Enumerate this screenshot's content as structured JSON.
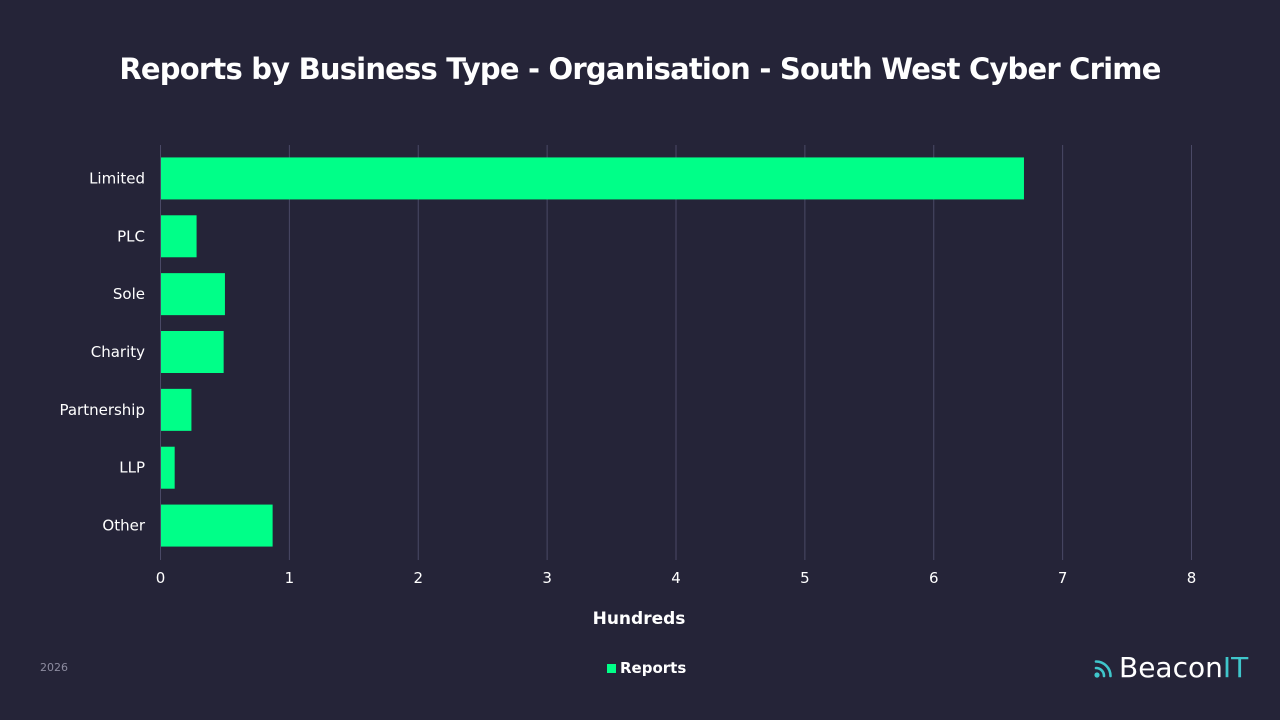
{
  "colors": {
    "background": "#252438",
    "bar": "#00ff88",
    "grid": "#4a4966",
    "brand_accent": "#3fc6cb"
  },
  "footer": {
    "year": "2026"
  },
  "brand": {
    "name_main": "Beacon",
    "name_accent": "IT",
    "icon": "signal-waves-icon"
  },
  "chart_data": {
    "type": "bar",
    "orientation": "horizontal",
    "title": "Reports by Business Type - Organisation - South West Cyber Crime",
    "xlabel": "Hundreds",
    "ylabel": "",
    "categories": [
      "Limited",
      "PLC",
      "Sole",
      "Charity",
      "Partnership",
      "LLP",
      "Other"
    ],
    "series": [
      {
        "name": "Reports",
        "values": [
          6.7,
          0.28,
          0.5,
          0.49,
          0.24,
          0.11,
          0.87
        ]
      }
    ],
    "xlim": [
      0,
      8
    ],
    "xticks": [
      "0",
      "1",
      "2",
      "3",
      "4",
      "5",
      "6",
      "7",
      "8"
    ],
    "grid": true,
    "legend_position": "bottom"
  }
}
